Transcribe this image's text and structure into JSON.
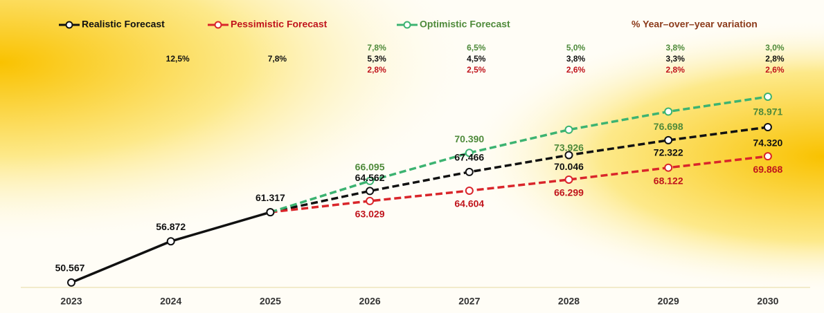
{
  "chart_data": {
    "type": "line",
    "categories": [
      "2023",
      "2024",
      "2025",
      "2026",
      "2027",
      "2028",
      "2029",
      "2030"
    ],
    "ylim": [
      49.5,
      80.5
    ],
    "legend_title": "% Year–over–year variation",
    "series": [
      {
        "name": "Realistic Forecast",
        "color": "#111111",
        "label_color": "#111111",
        "values": [
          50.567,
          56.872,
          61.317,
          64.562,
          67.466,
          70.046,
          72.322,
          74.32
        ],
        "value_labels": [
          "50.567",
          "56.872",
          "61.317",
          "64.562",
          "67.466",
          "70.046",
          "72.322",
          "74.320"
        ],
        "variation": [
          null,
          12.5,
          7.8,
          5.3,
          4.5,
          3.8,
          3.3,
          2.8
        ],
        "variation_labels": [
          null,
          "12,5%",
          "7,8%",
          "5,3%",
          "4,5%",
          "3,8%",
          "3,3%",
          "2,8%"
        ]
      },
      {
        "name": "Pessimistic Forecast",
        "color": "#d9252a",
        "label_color": "#c0141c",
        "values": [
          null,
          null,
          61.317,
          63.029,
          64.604,
          66.299,
          68.122,
          69.868
        ],
        "value_labels": [
          null,
          null,
          null,
          "63.029",
          "64.604",
          "66.299",
          "68.122",
          "69.868"
        ],
        "variation": [
          null,
          null,
          null,
          2.8,
          2.5,
          2.6,
          2.8,
          2.6
        ],
        "variation_labels": [
          null,
          null,
          null,
          "2,8%",
          "2,5%",
          "2,6%",
          "2,8%",
          "2,6%"
        ]
      },
      {
        "name": "Optimistic Forecast",
        "color": "#3cb371",
        "label_color": "#4e8a3a",
        "values": [
          null,
          null,
          61.317,
          66.095,
          70.39,
          73.926,
          76.698,
          78.971
        ],
        "value_labels": [
          null,
          null,
          null,
          "66.095",
          "70.390",
          "73.926",
          "76.698",
          "78.971"
        ],
        "variation": [
          null,
          null,
          null,
          7.8,
          6.5,
          5.0,
          3.8,
          3.0
        ],
        "variation_labels": [
          null,
          null,
          null,
          "7,8%",
          "6,5%",
          "5,0%",
          "3,8%",
          "3,0%"
        ]
      }
    ]
  }
}
